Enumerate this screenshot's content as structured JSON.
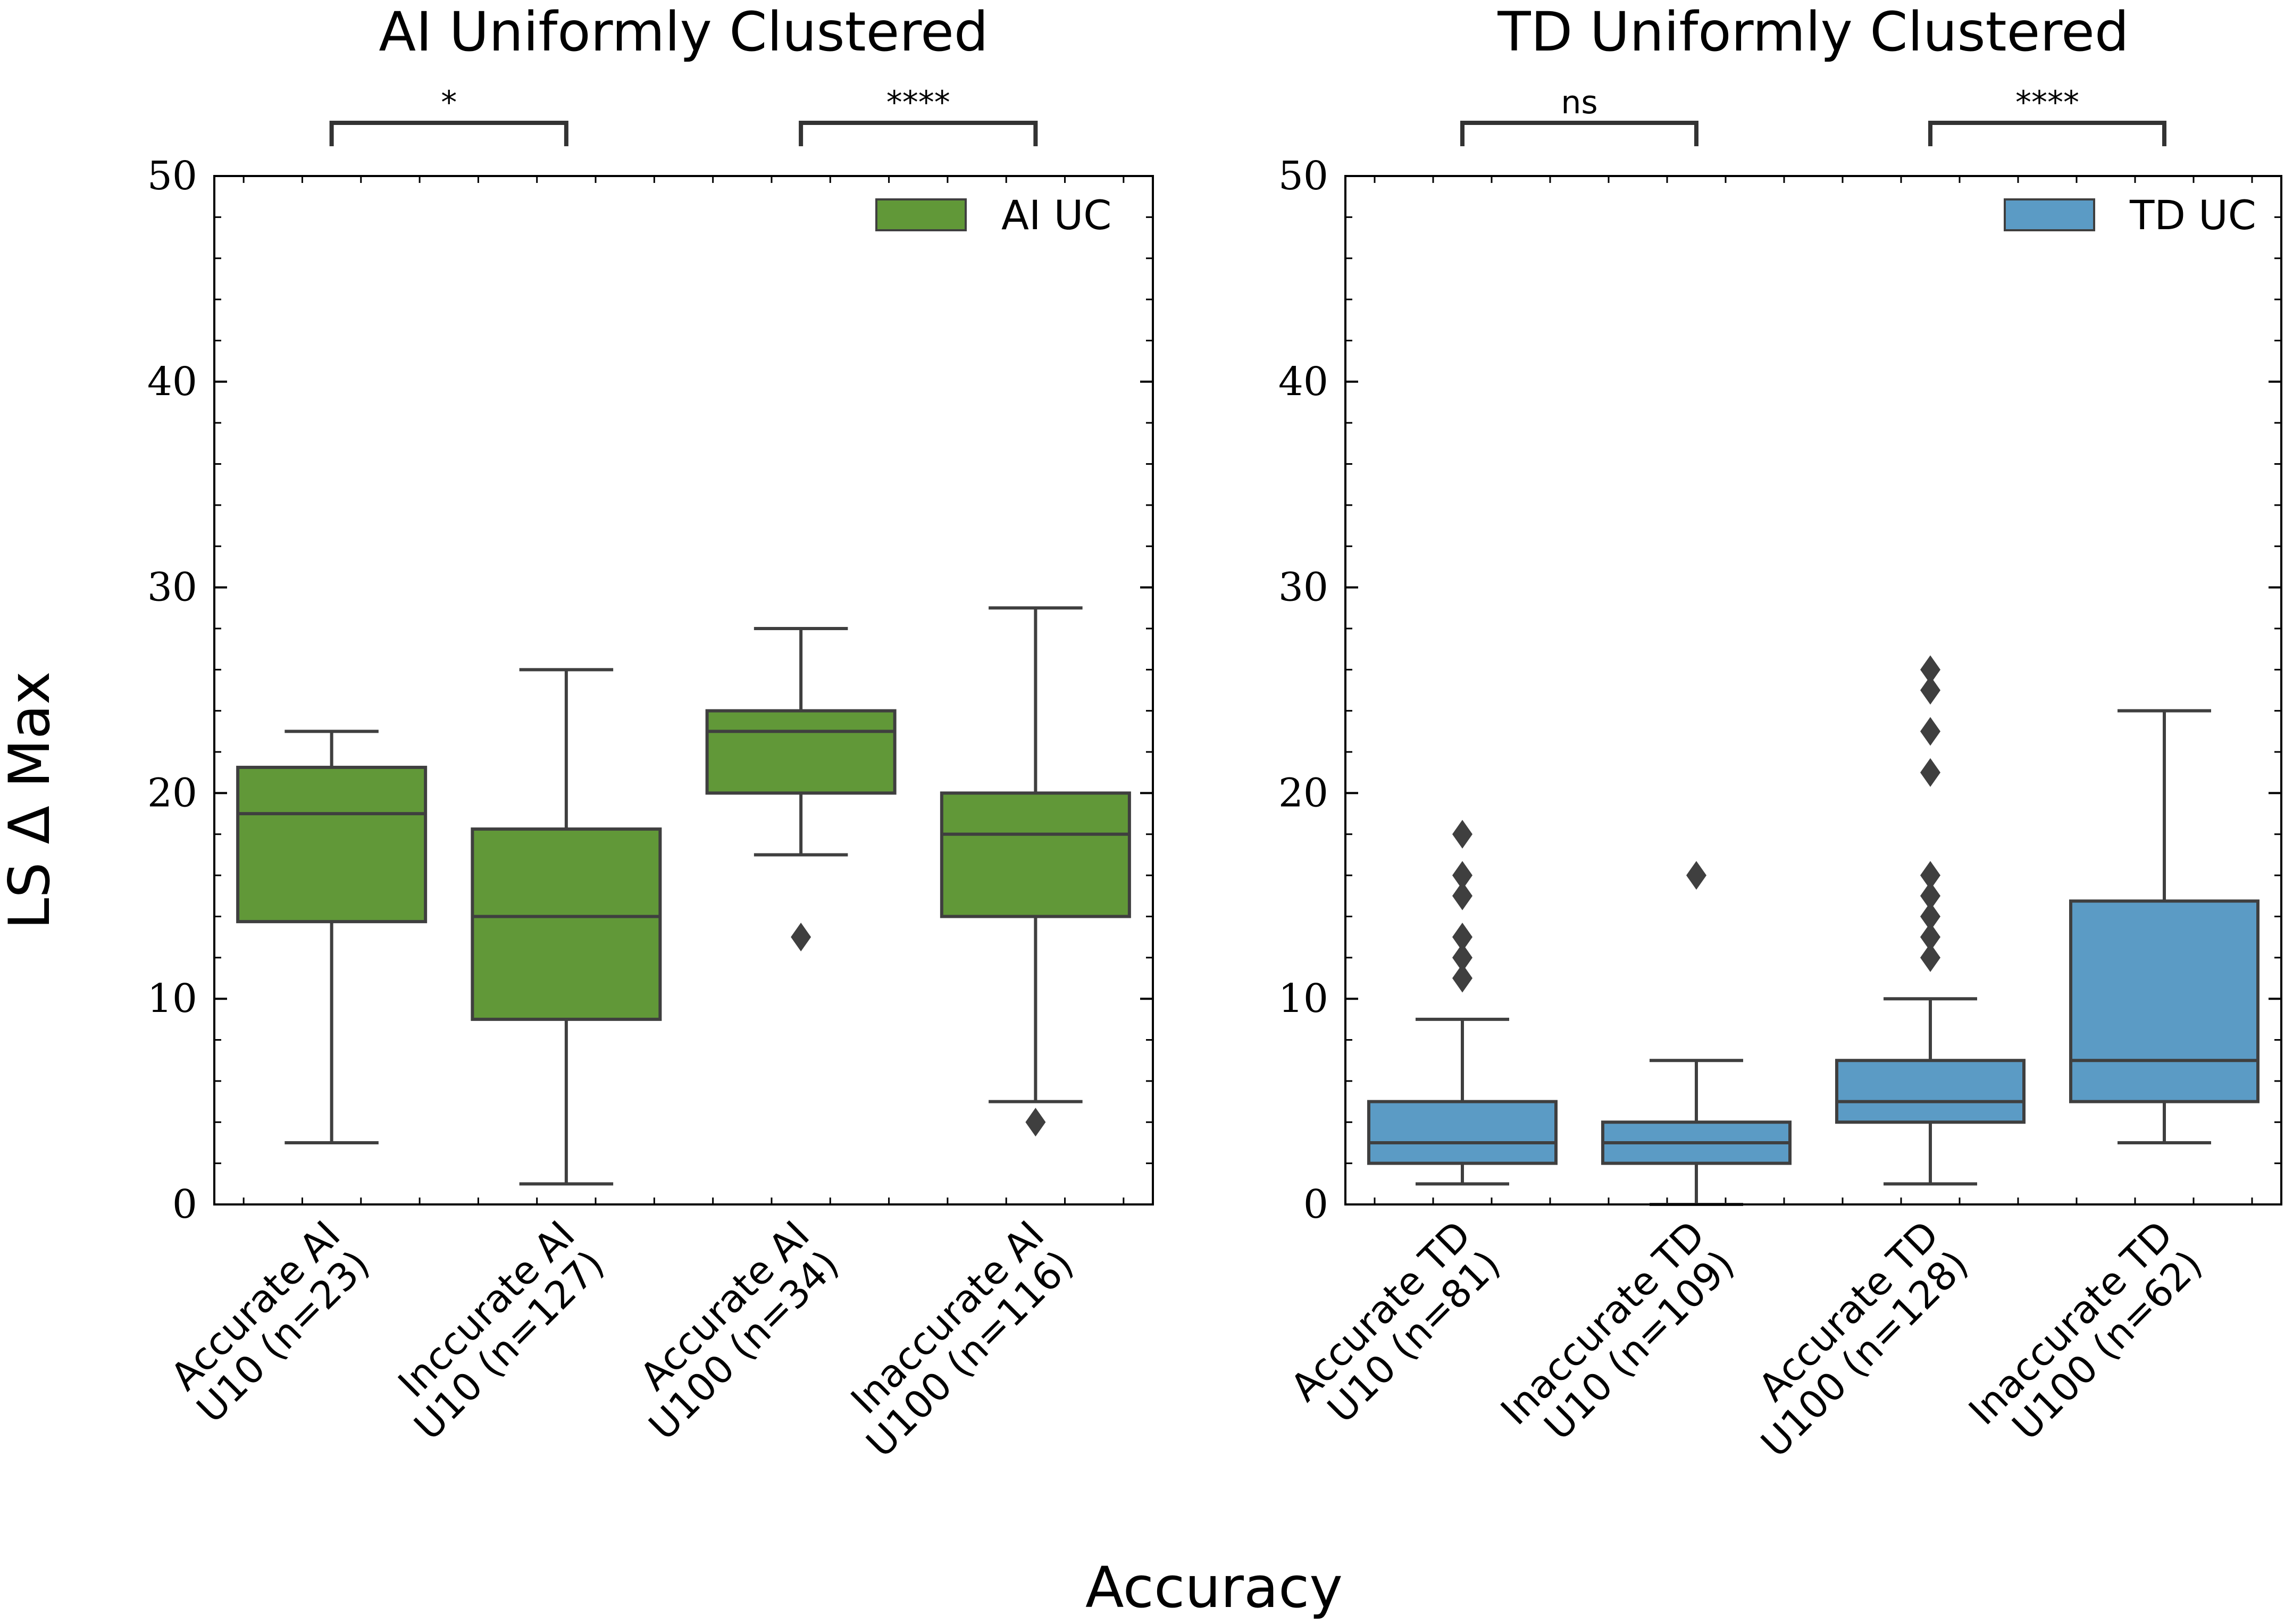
{
  "ylabel": "LS Δ Max",
  "xlabel": "Accuracy",
  "chart_data": [
    {
      "type": "box",
      "title": "AI Uniformly Clustered",
      "ylim": [
        0,
        50
      ],
      "yticks": [
        0,
        10,
        20,
        30,
        40,
        50
      ],
      "legend": {
        "label": "AI UC",
        "placement": "top-right"
      },
      "color": "#619838",
      "categories": [
        [
          "Accurate AI",
          "U10 (n=23)"
        ],
        [
          "Inccurate AI",
          "U10 (n=127)"
        ],
        [
          "Accurate AI",
          "U100 (n=34)"
        ],
        [
          "Inaccurate AI",
          "U100 (n=116)"
        ]
      ],
      "boxes": [
        {
          "whisker_low": 3,
          "q1": 13.75,
          "median": 19,
          "q3": 21.25,
          "whisker_high": 23,
          "outliers": []
        },
        {
          "whisker_low": 1,
          "q1": 9,
          "median": 14,
          "q3": 18.25,
          "whisker_high": 26,
          "outliers": []
        },
        {
          "whisker_low": 17,
          "q1": 20,
          "median": 23,
          "q3": 24,
          "whisker_high": 28,
          "outliers": [
            13
          ]
        },
        {
          "whisker_low": 5,
          "q1": 14,
          "median": 18,
          "q3": 20,
          "whisker_high": 29,
          "outliers": [
            4
          ]
        }
      ],
      "significance": [
        {
          "pair": [
            0,
            1
          ],
          "label": "*"
        },
        {
          "pair": [
            2,
            3
          ],
          "label": "****"
        }
      ]
    },
    {
      "type": "box",
      "title": "TD Uniformly Clustered",
      "ylim": [
        0,
        50
      ],
      "yticks": [
        0,
        10,
        20,
        30,
        40,
        50
      ],
      "legend": {
        "label": "TD UC",
        "placement": "top-right"
      },
      "color": "#5b9bc5",
      "categories": [
        [
          "Accurate TD",
          "U10 (n=81)"
        ],
        [
          "Inaccurate TD",
          "U10 (n=109)"
        ],
        [
          "Accurate TD",
          "U100 (n=128)"
        ],
        [
          "Inaccurate TD",
          "U100 (n=62)"
        ]
      ],
      "boxes": [
        {
          "whisker_low": 1,
          "q1": 2,
          "median": 3,
          "q3": 5,
          "whisker_high": 9,
          "outliers": [
            11,
            12,
            13,
            15,
            16,
            18
          ]
        },
        {
          "whisker_low": 0,
          "q1": 2,
          "median": 3,
          "q3": 4,
          "whisker_high": 7,
          "outliers": [
            16
          ]
        },
        {
          "whisker_low": 1,
          "q1": 4,
          "median": 5,
          "q3": 7,
          "whisker_high": 10,
          "outliers": [
            12,
            13,
            14,
            15,
            16,
            21,
            23,
            25,
            26
          ]
        },
        {
          "whisker_low": 3,
          "q1": 5,
          "median": 7,
          "q3": 14.75,
          "whisker_high": 24,
          "outliers": []
        }
      ],
      "significance": [
        {
          "pair": [
            0,
            1
          ],
          "label": "ns"
        },
        {
          "pair": [
            2,
            3
          ],
          "label": "****"
        }
      ]
    }
  ],
  "colors": {
    "edge": "#3f3f3f",
    "axis": "#000000"
  }
}
